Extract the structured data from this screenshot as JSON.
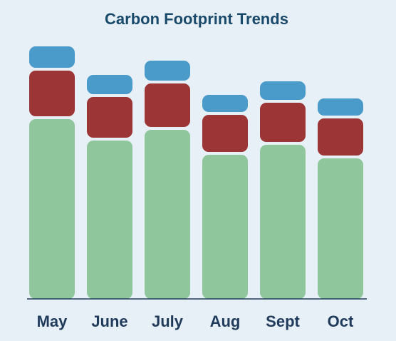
{
  "chart_data": {
    "type": "stacked-bar",
    "title": "Carbon Footprint Trends",
    "categories": [
      "May",
      "June",
      "July",
      "Aug",
      "Sept",
      "Oct"
    ],
    "series": [
      {
        "color": "#8fc69c",
        "values": [
          254,
          224,
          239,
          204,
          218,
          199
        ]
      },
      {
        "color": "#9c3535",
        "values": [
          68,
          61,
          65,
          56,
          59,
          56
        ]
      },
      {
        "color": "#4a9bc9",
        "values": [
          34,
          31,
          32,
          28,
          30,
          28
        ]
      }
    ],
    "ylim": [
      0,
      380
    ]
  }
}
